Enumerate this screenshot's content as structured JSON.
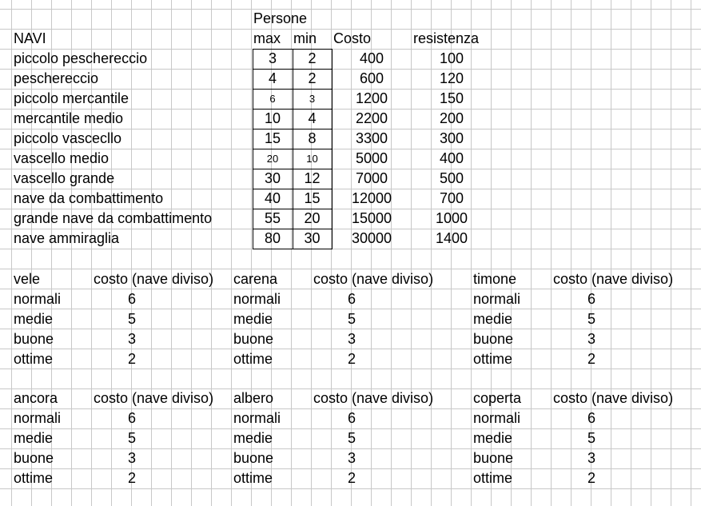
{
  "ships": {
    "header_persone": "Persone",
    "header_navi": "NAVI",
    "header_max": "max",
    "header_min": "min",
    "header_costo": "Costo",
    "header_resistenza": "resistenza",
    "rows": [
      {
        "name": "piccolo peschereccio",
        "max": "3",
        "min": "2",
        "costo": "400",
        "resistenza": "100"
      },
      {
        "name": "peschereccio",
        "max": "4",
        "min": "2",
        "costo": "600",
        "resistenza": "120"
      },
      {
        "name": "piccolo mercantile",
        "max": "6",
        "min": "3",
        "costo": "1200",
        "resistenza": "150"
      },
      {
        "name": "mercantile medio",
        "max": "10",
        "min": "4",
        "costo": "2200",
        "resistenza": "200"
      },
      {
        "name": "piccolo vascecllo",
        "max": "15",
        "min": "8",
        "costo": "3300",
        "resistenza": "300"
      },
      {
        "name": "vascello medio",
        "max": "20",
        "min": "10",
        "costo": "5000",
        "resistenza": "400"
      },
      {
        "name": "vascello grande",
        "max": "30",
        "min": "12",
        "costo": "7000",
        "resistenza": "500"
      },
      {
        "name": "nave da combattimento",
        "max": "40",
        "min": "15",
        "costo": "12000",
        "resistenza": "700"
      },
      {
        "name": "grande nave da combattimento",
        "max": "55",
        "min": "20",
        "costo": "15000",
        "resistenza": "1000"
      },
      {
        "name": "nave ammiraglia",
        "max": "80",
        "min": "30",
        "costo": "30000",
        "resistenza": "1400"
      }
    ]
  },
  "components": [
    {
      "title": "vele",
      "cost_header": "costo (nave diviso)",
      "rows": [
        {
          "level": "normali",
          "cost": "6"
        },
        {
          "level": "medie",
          "cost": "5"
        },
        {
          "level": "buone",
          "cost": "3"
        },
        {
          "level": "ottime",
          "cost": "2"
        }
      ]
    },
    {
      "title": "carena",
      "cost_header": "costo (nave diviso)",
      "rows": [
        {
          "level": "normali",
          "cost": "6"
        },
        {
          "level": "medie",
          "cost": "5"
        },
        {
          "level": "buone",
          "cost": "3"
        },
        {
          "level": "ottime",
          "cost": "2"
        }
      ]
    },
    {
      "title": "timone",
      "cost_header": "costo (nave diviso)",
      "rows": [
        {
          "level": "normali",
          "cost": "6"
        },
        {
          "level": "medie",
          "cost": "5"
        },
        {
          "level": "buone",
          "cost": "3"
        },
        {
          "level": "ottime",
          "cost": "2"
        }
      ]
    },
    {
      "title": "ancora",
      "cost_header": "costo (nave diviso)",
      "rows": [
        {
          "level": "normali",
          "cost": "6"
        },
        {
          "level": "medie",
          "cost": "5"
        },
        {
          "level": "buone",
          "cost": "3"
        },
        {
          "level": "ottime",
          "cost": "2"
        }
      ]
    },
    {
      "title": "albero",
      "cost_header": "costo (nave diviso)",
      "rows": [
        {
          "level": "normali",
          "cost": "6"
        },
        {
          "level": "medie",
          "cost": "5"
        },
        {
          "level": "buone",
          "cost": "3"
        },
        {
          "level": "ottime",
          "cost": "2"
        }
      ]
    },
    {
      "title": "coperta",
      "cost_header": "costo (nave diviso)",
      "rows": [
        {
          "level": "normali",
          "cost": "6"
        },
        {
          "level": "medie",
          "cost": "5"
        },
        {
          "level": "buone",
          "cost": "3"
        },
        {
          "level": "ottime",
          "cost": "2"
        }
      ]
    }
  ]
}
